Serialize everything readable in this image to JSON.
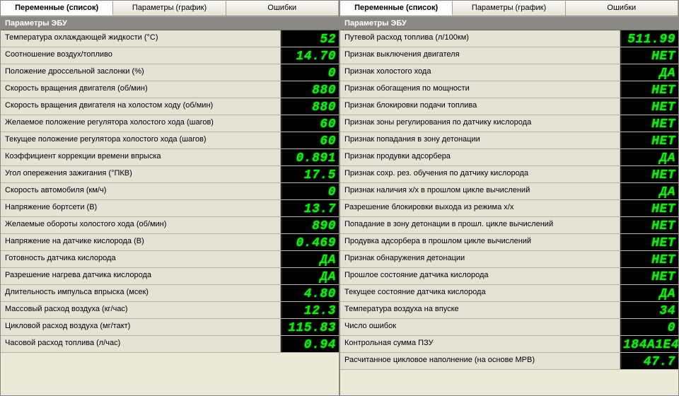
{
  "tabs": {
    "variables": "Переменные (список)",
    "params": "Параметры (график)",
    "errors": "Ошибки"
  },
  "section_title": "Параметры ЭБУ",
  "left_rows": [
    {
      "label": "Температура охлаждающей жидкости (°C)",
      "value": "52"
    },
    {
      "label": "Соотношение воздух/топливо",
      "value": "14.70"
    },
    {
      "label": "Положение дроссельной заслонки (%)",
      "value": "0"
    },
    {
      "label": "Скорость вращения двигателя (об/мин)",
      "value": "880"
    },
    {
      "label": "Скорость вращения двигателя на холостом ходу (об/мин)",
      "value": "880"
    },
    {
      "label": "Желаемое положение регулятора холостого хода (шагов)",
      "value": "60"
    },
    {
      "label": "Текущее положение регулятора холостого хода (шагов)",
      "value": "60"
    },
    {
      "label": "Коэффициент коррекции времени впрыска",
      "value": "0.891"
    },
    {
      "label": "Угол опережения зажигания (°ПКВ)",
      "value": "17.5"
    },
    {
      "label": "Скорость автомобиля (км/ч)",
      "value": "0"
    },
    {
      "label": "Напряжение бортсети (В)",
      "value": "13.7"
    },
    {
      "label": "Желаемые обороты холостого хода (об/мин)",
      "value": "890"
    },
    {
      "label": "Напряжение на датчике кислорода (В)",
      "value": "0.469"
    },
    {
      "label": "Готовность датчика кислорода",
      "value": "ДА"
    },
    {
      "label": "Разрешение нагрева датчика кислорода",
      "value": "ДА"
    },
    {
      "label": "Длительность импульса впрыска (мсек)",
      "value": "4.80"
    },
    {
      "label": "Массовый расход воздуха (кг/час)",
      "value": "12.3"
    },
    {
      "label": "Цикловой расход воздуха (мг/такт)",
      "value": "115.83"
    },
    {
      "label": "Часовой расход топлива (л/час)",
      "value": "0.94"
    }
  ],
  "right_rows": [
    {
      "label": "Путевой расход топлива (л/100км)",
      "value": "511.99"
    },
    {
      "label": "Признак выключения двигателя",
      "value": "НЕТ"
    },
    {
      "label": "Признак холостого хода",
      "value": "ДА"
    },
    {
      "label": "Признак обогащения по мощности",
      "value": "НЕТ"
    },
    {
      "label": "Признак блокировки подачи топлива",
      "value": "НЕТ"
    },
    {
      "label": "Признак зоны регулирования по датчику кислорода",
      "value": "НЕТ"
    },
    {
      "label": "Признак попадания в зону детонации",
      "value": "НЕТ"
    },
    {
      "label": "Признак продувки адсорбера",
      "value": "ДА"
    },
    {
      "label": "Признак сохр. рез. обучения по датчику кислорода",
      "value": "НЕТ"
    },
    {
      "label": "Признак наличия х/х в прошлом цикле вычислений",
      "value": "ДА"
    },
    {
      "label": "Разрешение блокировки выхода из режима х/х",
      "value": "НЕТ"
    },
    {
      "label": "Попадание в зону детонации в прошл. цикле вычислений",
      "value": "НЕТ"
    },
    {
      "label": "Продувка адсорбера в прошлом цикле вычислений",
      "value": "НЕТ"
    },
    {
      "label": "Признак обнаружения детонации",
      "value": "НЕТ"
    },
    {
      "label": "Прошлое состояние датчика кислорода",
      "value": "НЕТ"
    },
    {
      "label": "Текущее состояние датчика кислорода",
      "value": "ДА"
    },
    {
      "label": "Температура воздуха на впуске",
      "value": "34"
    },
    {
      "label": "Число ошибок",
      "value": "0"
    },
    {
      "label": "Контрольная сумма ПЗУ",
      "value": "184A1E4"
    },
    {
      "label": "Расчитанное цикловое наполнение (на основе МРВ)",
      "value": "47.7"
    }
  ],
  "style": {
    "led_color": "#20e020",
    "led_bg": "#000000",
    "panel_bg": "#e4e1d5",
    "header_bg": "#888884",
    "font_size_label": 11,
    "font_size_value": 18
  }
}
